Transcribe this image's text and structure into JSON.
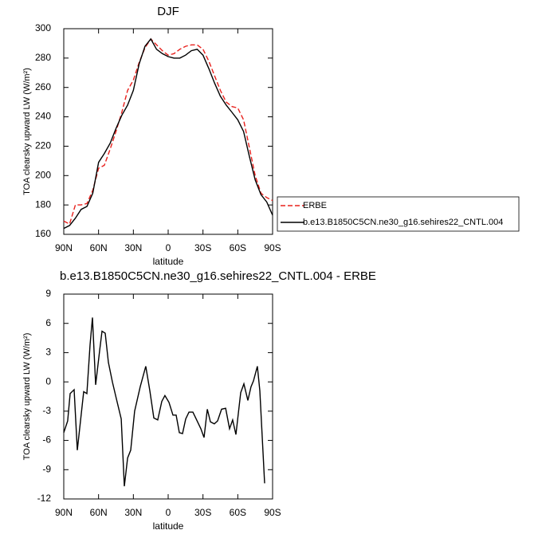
{
  "chart_data": [
    {
      "type": "line",
      "title": "DJF",
      "xlabel": "latitude",
      "ylabel": "TOA clearsky upward LW (W/m²)",
      "x": [
        90,
        85,
        80,
        75,
        70,
        65,
        60,
        55,
        50,
        45,
        40,
        35,
        30,
        25,
        20,
        15,
        10,
        5,
        0,
        -5,
        -10,
        -15,
        -20,
        -25,
        -30,
        -35,
        -40,
        -45,
        -50,
        -55,
        -60,
        -65,
        -70,
        -75,
        -80,
        -85,
        -90
      ],
      "xlim": [
        90,
        -90
      ],
      "xticks": [
        {
          "value": 90,
          "label": "90N"
        },
        {
          "value": 60,
          "label": "60N"
        },
        {
          "value": 30,
          "label": "30N"
        },
        0,
        {
          "value": -30,
          "label": "30S"
        },
        {
          "value": -60,
          "label": "60S"
        },
        {
          "value": -90,
          "label": "90S"
        }
      ],
      "ylim": [
        160,
        300
      ],
      "yticks": [
        160,
        180,
        200,
        220,
        240,
        260,
        280,
        300
      ],
      "legend": "right",
      "series": [
        {
          "name": "ERBE",
          "color": "#e8201c",
          "line_style": "dashed",
          "values": [
            169,
            167,
            180,
            180,
            181,
            190,
            205,
            207,
            218,
            230,
            243,
            258,
            265,
            277,
            287,
            293,
            289,
            285,
            282,
            283,
            286,
            288,
            289,
            289,
            286,
            278,
            268,
            258,
            250,
            247,
            246,
            238,
            219,
            200,
            188,
            185,
            183
          ]
        },
        {
          "name": "b.e13.B1850C5CN.ne30_g16.sehires22_CNTL.004",
          "color": "#000000",
          "line_style": "solid",
          "values": [
            164,
            166,
            171,
            177,
            179,
            188,
            209,
            215,
            222,
            232,
            241,
            248,
            258,
            276,
            288,
            293,
            286,
            283,
            281,
            280,
            280,
            282,
            285,
            286,
            282,
            273,
            263,
            254,
            248,
            243,
            238,
            230,
            213,
            197,
            187,
            182,
            173
          ]
        }
      ]
    },
    {
      "type": "line",
      "title": "b.e13.B1850C5CN.ne30_g16.sehires22_CNTL.004 - ERBE",
      "xlabel": "latitude",
      "ylabel": "TOA clearsky upward LW (W/m²)",
      "x": [
        90,
        86.6,
        84.5,
        81.1,
        78.3,
        72.8,
        70.1,
        67.3,
        65.3,
        62.5,
        59.1,
        57.0,
        54.3,
        51.5,
        48.1,
        44.7,
        40.5,
        37.8,
        35.0,
        32.3,
        28.9,
        24.1,
        19.3,
        15.8,
        12.4,
        9.0,
        5.5,
        2.8,
        -0.7,
        -4.1,
        -6.9,
        -9.6,
        -12.4,
        -15.1,
        -17.9,
        -21.3,
        -24.1,
        -28.2,
        -30.9,
        -33.7,
        -36.4,
        -39.8,
        -42.6,
        -46.0,
        -49.5,
        -52.9,
        -55.6,
        -58.4,
        -62.5,
        -65.3,
        -68.7,
        -71.4,
        -73.5,
        -76.9,
        -79.0,
        -83.1
      ],
      "xlim": [
        90,
        -90
      ],
      "xticks": [
        {
          "value": 90,
          "label": "90N"
        },
        {
          "value": 60,
          "label": "60N"
        },
        {
          "value": 30,
          "label": "30N"
        },
        0,
        {
          "value": -30,
          "label": "30S"
        },
        {
          "value": -60,
          "label": "60S"
        },
        {
          "value": -90,
          "label": "90S"
        }
      ],
      "ylim": [
        -12,
        9
      ],
      "yticks": [
        -12,
        -9,
        -6,
        -3,
        0,
        3,
        6,
        9
      ],
      "series": [
        {
          "color": "#000000",
          "line_style": "solid",
          "values": [
            -5.2,
            -4,
            -1.2,
            -0.8,
            -7,
            -1,
            -1.2,
            3.8,
            6.6,
            -0.3,
            3.2,
            5.2,
            5,
            2,
            0,
            -1.7,
            -3.8,
            -10.7,
            -7.8,
            -7,
            -3,
            -0.5,
            1.6,
            -0.9,
            -3.7,
            -3.9,
            -2,
            -1.4,
            -2.1,
            -3.4,
            -3.4,
            -5.2,
            -5.3,
            -3.8,
            -3.1,
            -3.1,
            -3.8,
            -4.8,
            -5.7,
            -2.8,
            -4.1,
            -4.3,
            -4,
            -2.8,
            -2.7,
            -4.8,
            -3.9,
            -5.4,
            -1.1,
            -0.2,
            -1.9,
            -0.5,
            0.1,
            1.6,
            -0.9,
            -10.4
          ]
        }
      ]
    }
  ]
}
